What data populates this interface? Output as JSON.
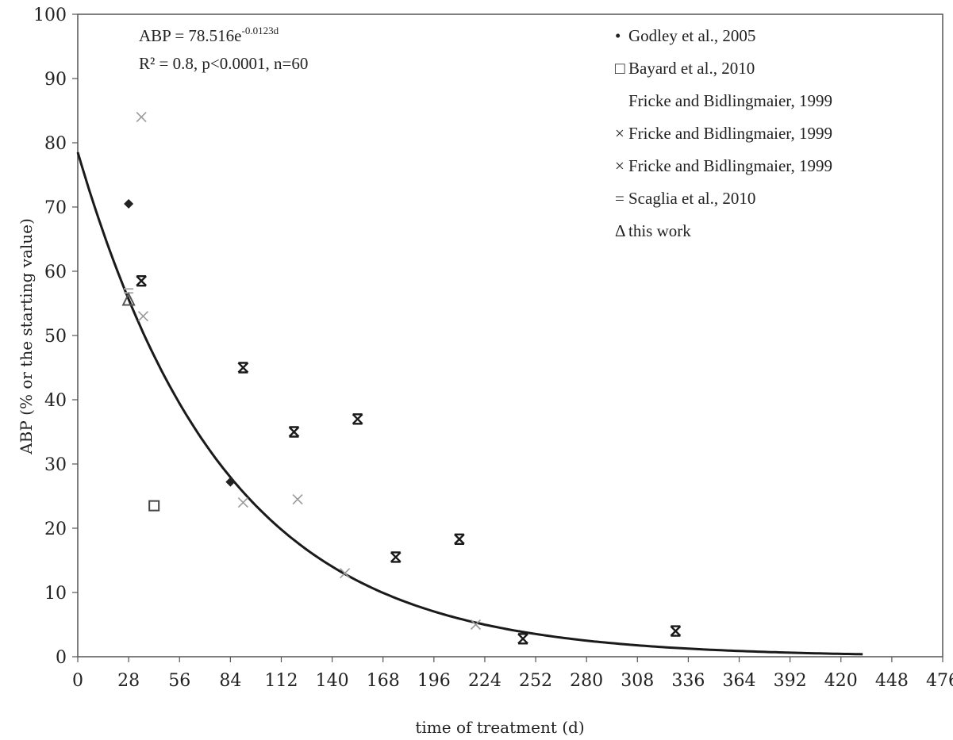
{
  "chart_data": {
    "type": "scatter",
    "xlabel": "time of treatment (d)",
    "ylabel": "ABP (% or the starting value)",
    "xlim": [
      0,
      476
    ],
    "ylim": [
      0,
      100
    ],
    "xticks": [
      0,
      28,
      56,
      84,
      112,
      140,
      168,
      196,
      224,
      252,
      280,
      308,
      336,
      364,
      392,
      420,
      448,
      476
    ],
    "yticks": [
      0,
      10,
      20,
      30,
      40,
      50,
      60,
      70,
      80,
      90,
      100
    ],
    "grid": false,
    "legend_position": "top-right",
    "annotation": {
      "equation_prefix": "ABP = 78.516e",
      "equation_exponent": "-0.0123d",
      "stats": "R² = 0.8, p<0.0001, n=60"
    },
    "fit": {
      "a": 78.516,
      "k": 0.0123,
      "x_max": 432,
      "color": "#1a1a1a"
    },
    "series": [
      {
        "name": "Godley et al., 2005",
        "marker": "diamond",
        "color": "#222222",
        "points": [
          [
            28,
            70.5
          ],
          [
            84,
            27.2
          ]
        ]
      },
      {
        "name": "Bayard et al., 2010",
        "marker": "square",
        "color": "#444444",
        "points": [
          [
            42,
            23.5
          ]
        ]
      },
      {
        "name": "Fricke and Bidlingmaier, 1999",
        "marker": "none",
        "color": "#999999",
        "points": []
      },
      {
        "name": "Fricke and Bidlingmaier, 1999",
        "marker": "x-light",
        "color": "#9a9a9a",
        "points": [
          [
            35,
            84
          ],
          [
            36,
            53
          ],
          [
            91,
            24
          ],
          [
            121,
            24.5
          ],
          [
            147,
            13
          ],
          [
            219,
            5
          ]
        ]
      },
      {
        "name": "Fricke and Bidlingmaier, 1999",
        "marker": "x-dark",
        "color": "#1a1a1a",
        "points": [
          [
            35,
            58.5
          ],
          [
            91,
            45
          ],
          [
            119,
            35
          ],
          [
            154,
            37
          ],
          [
            175,
            15.5
          ],
          [
            210,
            18.3
          ],
          [
            245,
            2.8
          ],
          [
            329,
            4
          ]
        ]
      },
      {
        "name": "Scaglia et al., 2010",
        "marker": "dash",
        "color": "#aaaaaa",
        "points": [
          [
            28,
            57
          ]
        ]
      },
      {
        "name": "this work",
        "marker": "triangle",
        "color": "#555555",
        "points": [
          [
            28,
            55.5
          ]
        ]
      }
    ],
    "legend_symbols": [
      "•",
      "□",
      "",
      "×",
      "×",
      "=",
      "Δ"
    ]
  }
}
